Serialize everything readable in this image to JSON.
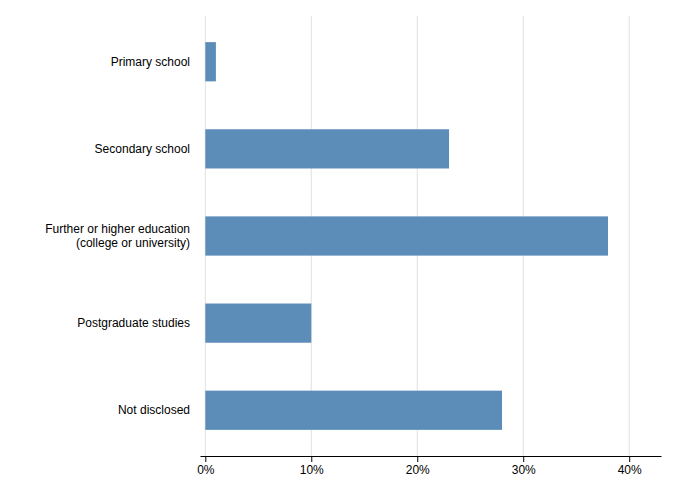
{
  "chart_data": {
    "type": "bar",
    "orientation": "horizontal",
    "categories": [
      "Not disclosed",
      "Postgraduate studies",
      "Further or higher education\n(college or university)",
      "Secondary school",
      "Primary school"
    ],
    "values": [
      28,
      10,
      38,
      23,
      1
    ],
    "color": "#5b8db8",
    "xlim": [
      -0.5,
      43
    ],
    "xticks": [
      {
        "value": 0,
        "label": "0%"
      },
      {
        "value": 10,
        "label": "10%"
      },
      {
        "value": 20,
        "label": "20%"
      },
      {
        "value": 30,
        "label": "30%"
      },
      {
        "value": 40,
        "label": "40%"
      }
    ],
    "grid": true
  }
}
